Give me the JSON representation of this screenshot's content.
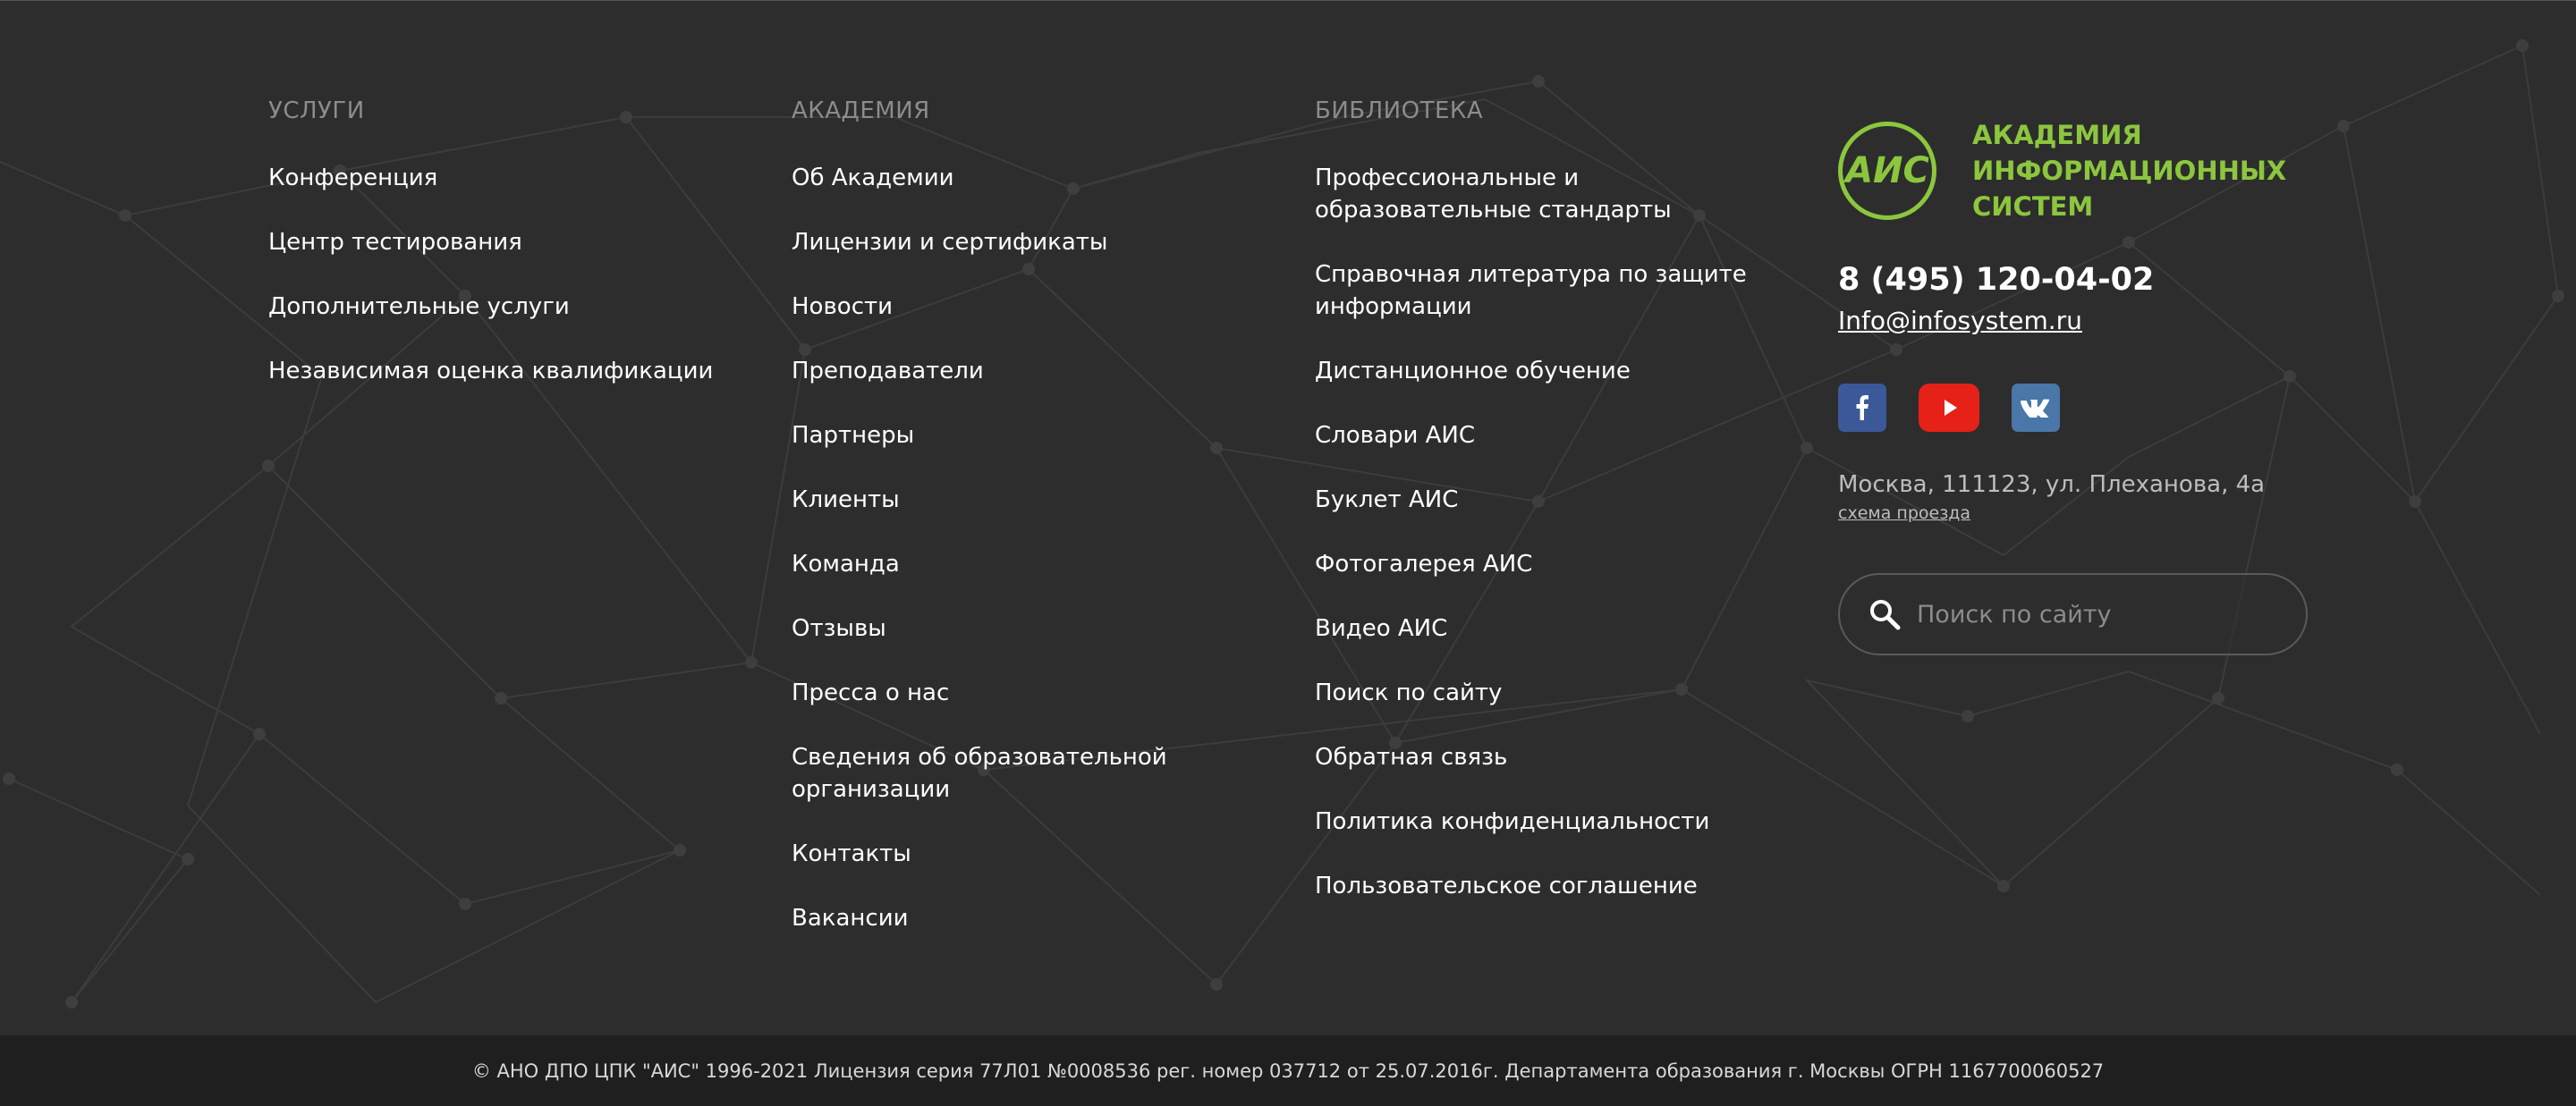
{
  "columns": [
    {
      "title": "Услуги",
      "links": [
        "Конференция",
        "Центр тестирования",
        "Дополнительные услуги",
        "Независимая оценка квалификации"
      ]
    },
    {
      "title": "Академия",
      "links": [
        "Об Академии",
        "Лицензии и сертификаты",
        "Новости",
        "Преподаватели",
        "Партнеры",
        "Клиенты",
        "Команда",
        "Отзывы",
        "Пресса о нас",
        "Сведения об образовательной организации",
        "Контакты",
        "Вакансии"
      ]
    },
    {
      "title": "Библиотека",
      "links": [
        "Профессиональные и образовательные стандарты",
        "Справочная литература по защите информации",
        "Дистанционное обучение",
        "Словари АИС",
        "Буклет АИС",
        "Фотогалерея АИС",
        "Видео АИС",
        "Поиск по сайту",
        "Обратная связь",
        "Политика конфиденциальности",
        "Пользовательское соглашение"
      ]
    }
  ],
  "brand": {
    "logo_text": "АИС",
    "name": "Академия информационных систем",
    "phone": "8 (495) 120-04-02",
    "email": "Info@infosystem.ru",
    "socials": [
      {
        "name": "facebook",
        "icon": "facebook-icon",
        "color": "#3b5998"
      },
      {
        "name": "youtube",
        "icon": "youtube-icon",
        "color": "#e62117"
      },
      {
        "name": "vk",
        "icon": "vk-icon",
        "color": "#4a76a8"
      }
    ],
    "address": "Москва, 111123, ул. Плеханова, 4а",
    "route_link": "схема проезда",
    "accent_color": "#8cc63e"
  },
  "search": {
    "placeholder": "Поиск по сайту",
    "value": ""
  },
  "copyright": "© АНО ДПО ЦПК \"АИС\" 1996-2021 Лицензия серия 77Л01 №0008536 рег. номер 037712 от 25.07.2016г. Департамента образования г. Москвы ОГРН 1167700060527"
}
